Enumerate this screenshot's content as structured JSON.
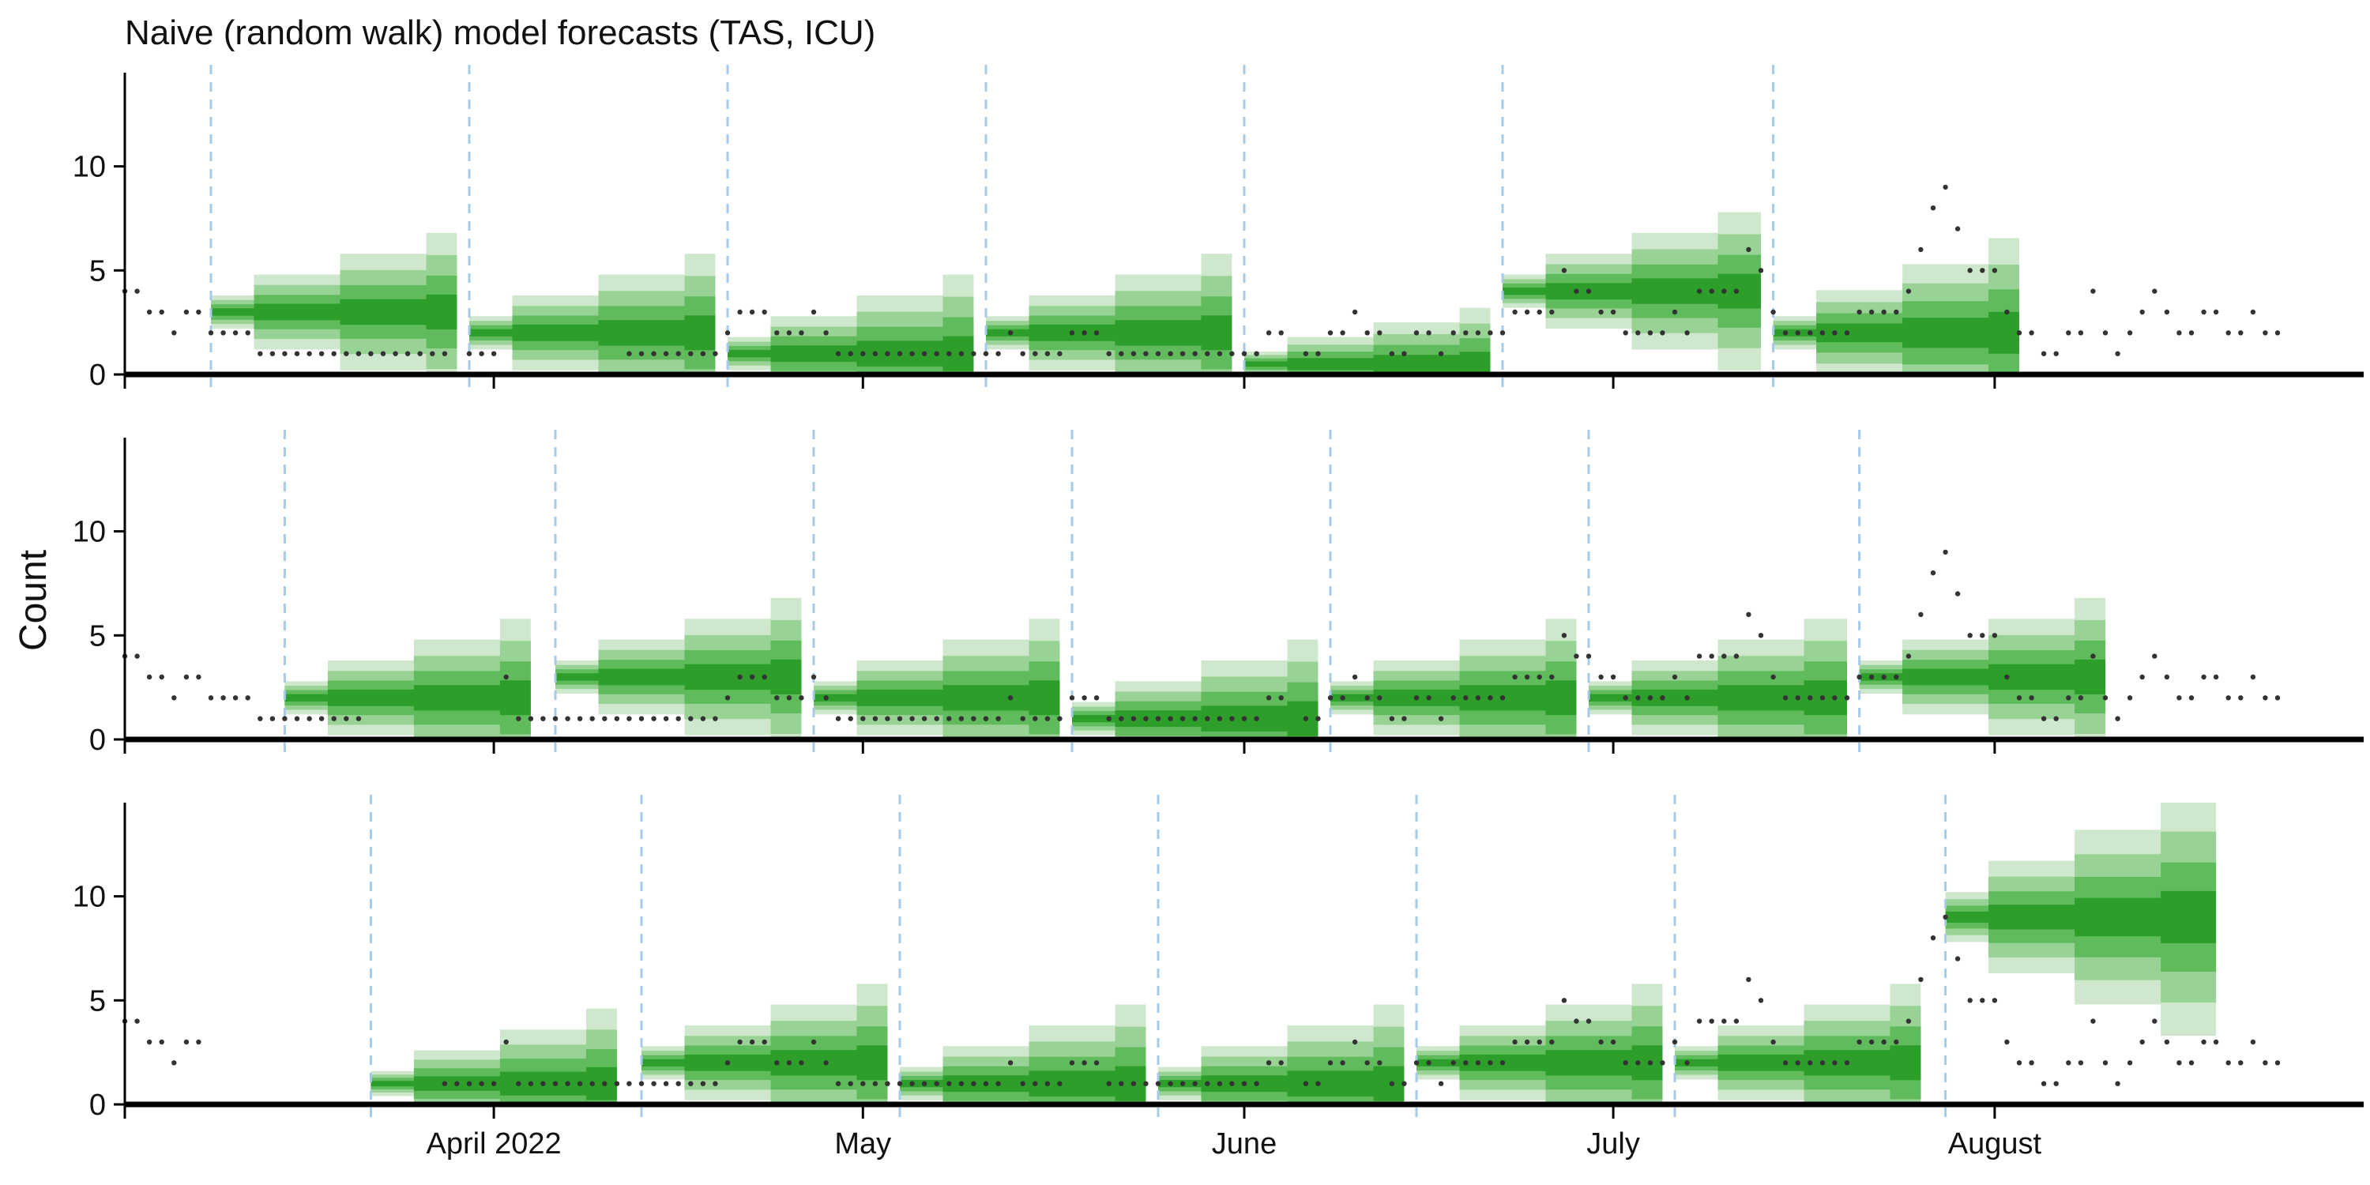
{
  "chart_data": {
    "type": "area",
    "title": "Naive (random walk) model forecasts (TAS, ICU)",
    "ylabel": "Count",
    "xlabel": "",
    "x_axis": {
      "domain": [
        "2022-03-02",
        "2022-08-31"
      ],
      "ticks": [
        {
          "date": "2022-04-01",
          "label": "April 2022"
        },
        {
          "date": "2022-05-01",
          "label": "May"
        },
        {
          "date": "2022-06-01",
          "label": "June"
        },
        {
          "date": "2022-07-01",
          "label": "July"
        },
        {
          "date": "2022-08-01",
          "label": "August"
        }
      ]
    },
    "y_axis": {
      "ylim": [
        0,
        14.5
      ],
      "ticks": [
        0,
        5,
        10
      ]
    },
    "colors": {
      "forecast_band_outer": "#cfe8cd",
      "forecast_band_mid": "#98d294",
      "forecast_band_inner": "#5fbb5b",
      "forecast_band_core": "#2e9e2a",
      "forecast_origin_line": "#a6cbe8",
      "observations": "#333333",
      "axis": "#000000"
    },
    "observations": {
      "start_date": "2022-03-02",
      "values": [
        4,
        4,
        3,
        3,
        2,
        3,
        3,
        2,
        2,
        2,
        2,
        1,
        1,
        1,
        1,
        1,
        1,
        1,
        1,
        1,
        1,
        1,
        1,
        1,
        1,
        1,
        1,
        1,
        1,
        1,
        1,
        3,
        1,
        1,
        1,
        1,
        1,
        1,
        1,
        1,
        1,
        1,
        1,
        1,
        1,
        1,
        1,
        1,
        1,
        2,
        3,
        3,
        3,
        2,
        2,
        2,
        3,
        2,
        1,
        1,
        1,
        1,
        1,
        1,
        1,
        1,
        1,
        1,
        1,
        1,
        1,
        1,
        2,
        1,
        1,
        1,
        1,
        2,
        2,
        2,
        1,
        1,
        1,
        1,
        1,
        1,
        1,
        1,
        1,
        1,
        1,
        1,
        1,
        2,
        2,
        0,
        1,
        1,
        2,
        2,
        3,
        2,
        2,
        1,
        1,
        2,
        2,
        1,
        2,
        2,
        2,
        2,
        2,
        3,
        3,
        3,
        3,
        5,
        4,
        4,
        3,
        3,
        2,
        2,
        2,
        2,
        3,
        2,
        4,
        4,
        4,
        4,
        6,
        5,
        3,
        2,
        2,
        2,
        2,
        2,
        2,
        3,
        3,
        3,
        3,
        4,
        6,
        8,
        9,
        7,
        5,
        5,
        5,
        3,
        2,
        2,
        1,
        1,
        2,
        2,
        4,
        2,
        1,
        2,
        3,
        4,
        3,
        2,
        2,
        3,
        3,
        2,
        2,
        3,
        2,
        2
      ],
      "dates_hidden_by_panel": [
        [
          "2022-03-29",
          "2022-04-02",
          "2022-04-03",
          "2022-04-04",
          "2022-04-05",
          "2022-04-06",
          "2022-04-07",
          "2022-04-08",
          "2022-04-09",
          "2022-04-10",
          "2022-04-11"
        ],
        [
          "2022-03-22",
          "2022-03-23",
          "2022-03-24",
          "2022-03-25",
          "2022-03-26",
          "2022-03-27",
          "2022-03-28",
          "2022-03-29",
          "2022-03-30",
          "2022-03-31",
          "2022-04-01"
        ],
        [
          "2022-03-09",
          "2022-03-10",
          "2022-03-11",
          "2022-03-12",
          "2022-03-13",
          "2022-03-14",
          "2022-03-15",
          "2022-03-16",
          "2022-03-17",
          "2022-03-18",
          "2022-03-19",
          "2022-03-20",
          "2022-03-21",
          "2022-03-22",
          "2022-03-23",
          "2022-03-24",
          "2022-03-25",
          "2022-03-26",
          "2022-03-27"
        ]
      ]
    },
    "panels": [
      {
        "forecast_origins": [
          "2022-03-09",
          "2022-03-30",
          "2022-04-20",
          "2022-05-11",
          "2022-06-01",
          "2022-06-22",
          "2022-07-14"
        ],
        "forecasts": [
          {
            "origin": "2022-03-09",
            "end": "2022-03-29",
            "median": 3,
            "width0": 0.8,
            "growth": 1.0
          },
          {
            "origin": "2022-03-30",
            "end": "2022-04-19",
            "median": 2,
            "width0": 0.8,
            "growth": 1.0
          },
          {
            "origin": "2022-04-20",
            "end": "2022-05-10",
            "median": 1,
            "width0": 0.8,
            "growth": 1.0
          },
          {
            "origin": "2022-05-11",
            "end": "2022-05-31",
            "median": 2,
            "width0": 0.8,
            "growth": 1.0
          },
          {
            "origin": "2022-06-01",
            "end": "2022-06-21",
            "median": 0.5,
            "width0": 0.6,
            "growth": 0.7
          },
          {
            "origin": "2022-06-22",
            "end": "2022-07-13",
            "median": 4,
            "width0": 0.8,
            "growth": 1.0
          },
          {
            "origin": "2022-07-14",
            "end": "2022-08-03",
            "median": 2,
            "width0": 0.8,
            "growth": 1.25
          }
        ]
      },
      {
        "forecast_origins": [
          "2022-03-15",
          "2022-04-06",
          "2022-04-27",
          "2022-05-18",
          "2022-06-08",
          "2022-06-29",
          "2022-07-21"
        ],
        "forecasts": [
          {
            "origin": "2022-03-15",
            "end": "2022-04-04",
            "median": 2,
            "width0": 0.8,
            "growth": 1.0
          },
          {
            "origin": "2022-04-06",
            "end": "2022-04-26",
            "median": 3,
            "width0": 0.8,
            "growth": 1.0
          },
          {
            "origin": "2022-04-27",
            "end": "2022-05-17",
            "median": 2,
            "width0": 0.8,
            "growth": 1.0
          },
          {
            "origin": "2022-05-18",
            "end": "2022-06-07",
            "median": 1,
            "width0": 0.8,
            "growth": 1.0
          },
          {
            "origin": "2022-06-08",
            "end": "2022-06-28",
            "median": 2,
            "width0": 0.8,
            "growth": 1.0
          },
          {
            "origin": "2022-06-29",
            "end": "2022-07-20",
            "median": 2,
            "width0": 0.8,
            "growth": 1.0
          },
          {
            "origin": "2022-07-21",
            "end": "2022-08-10",
            "median": 3,
            "width0": 0.8,
            "growth": 1.0
          }
        ]
      },
      {
        "forecast_origins": [
          "2022-03-22",
          "2022-04-13",
          "2022-05-04",
          "2022-05-25",
          "2022-06-15",
          "2022-07-06",
          "2022-07-28"
        ],
        "forecasts": [
          {
            "origin": "2022-03-22",
            "end": "2022-04-11",
            "median": 1,
            "width0": 0.6,
            "growth": 1.0
          },
          {
            "origin": "2022-04-13",
            "end": "2022-05-03",
            "median": 2,
            "width0": 0.8,
            "growth": 1.0
          },
          {
            "origin": "2022-05-04",
            "end": "2022-05-24",
            "median": 1,
            "width0": 0.8,
            "growth": 1.0
          },
          {
            "origin": "2022-05-25",
            "end": "2022-06-14",
            "median": 1,
            "width0": 0.8,
            "growth": 1.0
          },
          {
            "origin": "2022-06-15",
            "end": "2022-07-05",
            "median": 2,
            "width0": 0.8,
            "growth": 1.0
          },
          {
            "origin": "2022-07-06",
            "end": "2022-07-26",
            "median": 2,
            "width0": 0.8,
            "growth": 1.0
          },
          {
            "origin": "2022-07-28",
            "end": "2022-08-19",
            "median": 9,
            "width0": 1.2,
            "growth": 1.5
          }
        ]
      }
    ]
  }
}
